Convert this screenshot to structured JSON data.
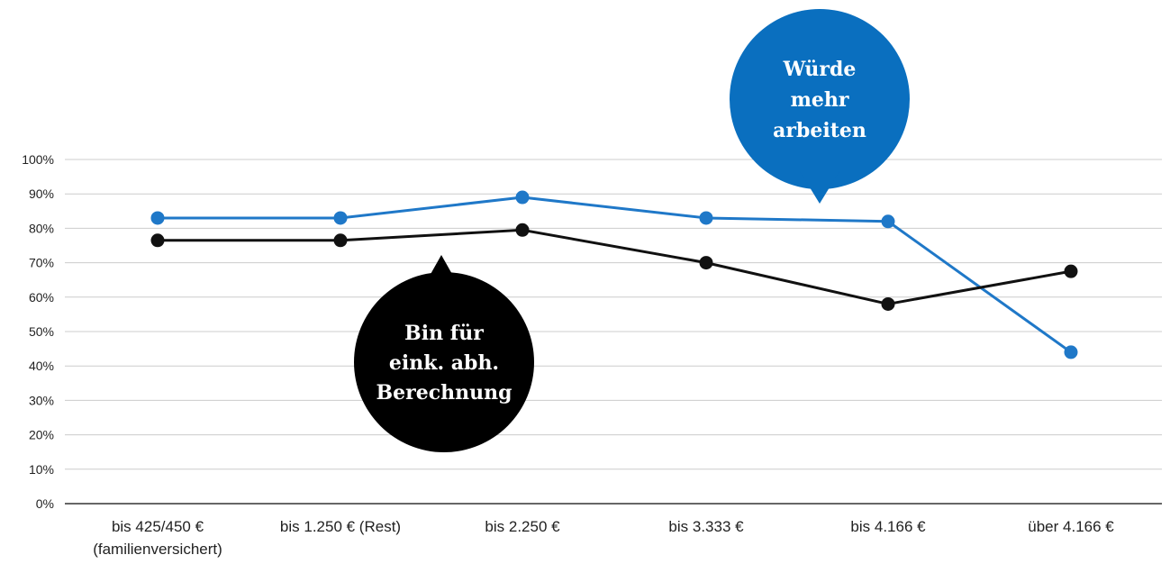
{
  "chart_data": {
    "type": "line",
    "categories": [
      [
        "bis 425/450 €",
        "(familienversichert)"
      ],
      [
        "bis 1.250 € (Rest)"
      ],
      [
        "bis 2.250 €"
      ],
      [
        "bis 3.333 €"
      ],
      [
        "bis 4.166 €"
      ],
      [
        "über 4.166 €"
      ]
    ],
    "ylim": [
      0,
      100
    ],
    "yticks": [
      "0%",
      "10%",
      "20%",
      "30%",
      "40%",
      "50%",
      "60%",
      "70%",
      "80%",
      "90%",
      "100%"
    ],
    "grid": true,
    "series": [
      {
        "key": "blue",
        "color": "#1f78c8",
        "values": [
          83,
          83,
          89,
          83,
          82,
          44
        ]
      },
      {
        "key": "black",
        "color": "#111111",
        "values": [
          76.5,
          76.5,
          79.5,
          70,
          58,
          67.5
        ]
      }
    ],
    "annotations": [
      {
        "series": "blue",
        "color": "#0a6fbf",
        "lines": [
          "Würde",
          "mehr",
          "arbeiten"
        ]
      },
      {
        "series": "black",
        "color": "#000000",
        "lines": [
          "Bin für",
          "eink. abh.",
          "Berechnung"
        ]
      }
    ]
  }
}
